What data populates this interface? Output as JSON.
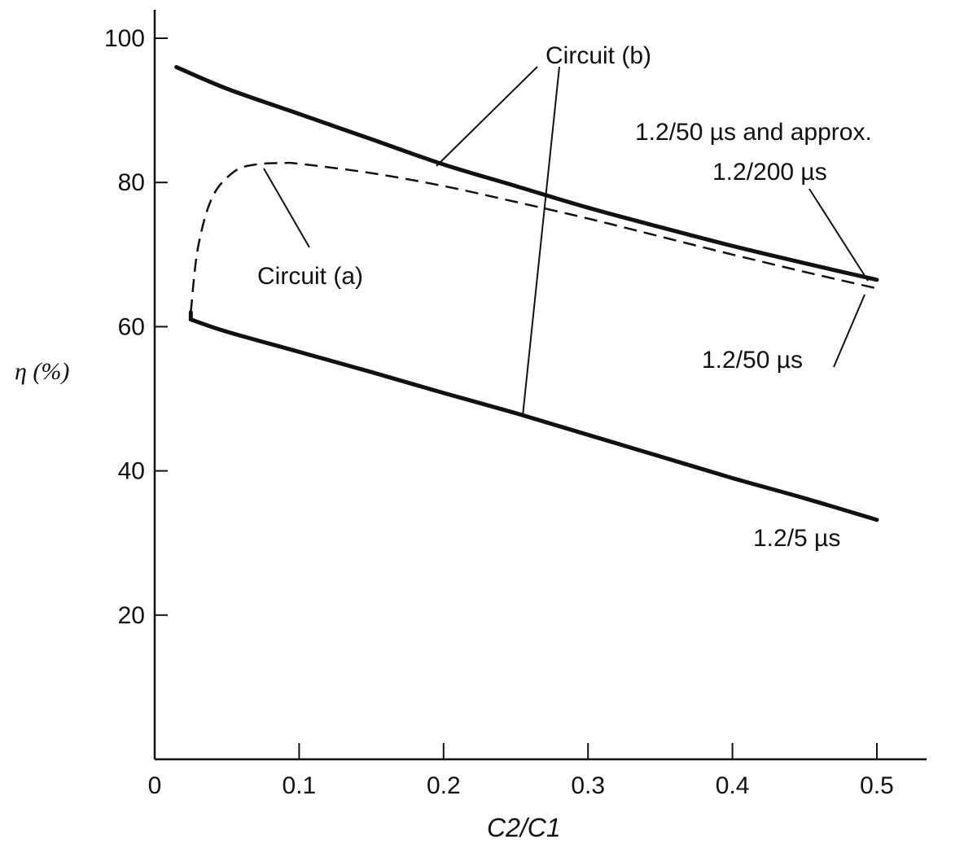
{
  "chart_data": {
    "type": "line",
    "xlabel": "C2/C1",
    "ylabel": "η (%)",
    "xlim": [
      0,
      0.5
    ],
    "ylim": [
      0,
      100
    ],
    "x_ticks": [
      "0",
      "0.1",
      "0.2",
      "0.3",
      "0.4",
      "0.5"
    ],
    "y_ticks": [
      "20",
      "40",
      "60",
      "80",
      "100"
    ],
    "grid": false,
    "series": [
      {
        "name": "1.2/50 µs and approx. 1.2/200 µs",
        "style": "solid",
        "x": [
          0.015,
          0.05,
          0.1,
          0.15,
          0.2,
          0.25,
          0.3,
          0.35,
          0.4,
          0.45,
          0.5
        ],
        "y": [
          96,
          93,
          89.5,
          86,
          82.5,
          79.5,
          76.5,
          73.8,
          71.2,
          68.8,
          66.5
        ]
      },
      {
        "name": "1.2/50 µs",
        "style": "dashed",
        "x": [
          0.025,
          0.03,
          0.04,
          0.055,
          0.07,
          0.09,
          0.1,
          0.15,
          0.2,
          0.25,
          0.3,
          0.35,
          0.4,
          0.45,
          0.5
        ],
        "y": [
          62,
          71,
          78,
          81.5,
          82.5,
          82.7,
          82.6,
          81.3,
          79.5,
          77.3,
          75,
          72.5,
          70,
          67.6,
          65.3
        ]
      },
      {
        "name": "1.2/5 µs",
        "style": "solid",
        "x": [
          0.025,
          0.05,
          0.1,
          0.15,
          0.2,
          0.25,
          0.3,
          0.35,
          0.4,
          0.45,
          0.5
        ],
        "y": [
          61,
          59.3,
          56.5,
          53.7,
          50.8,
          48,
          45,
          42,
          39,
          36.2,
          33.2
        ]
      }
    ],
    "annotations": {
      "circuit_b": "Circuit (b)",
      "circuit_a": "Circuit (a)",
      "upper_label_1": "1.2/50 µs and approx.",
      "upper_label_2": "1.2/200 µs",
      "dashed_label": "1.2/50 µs",
      "lower_label": "1.2/5 µs"
    }
  }
}
